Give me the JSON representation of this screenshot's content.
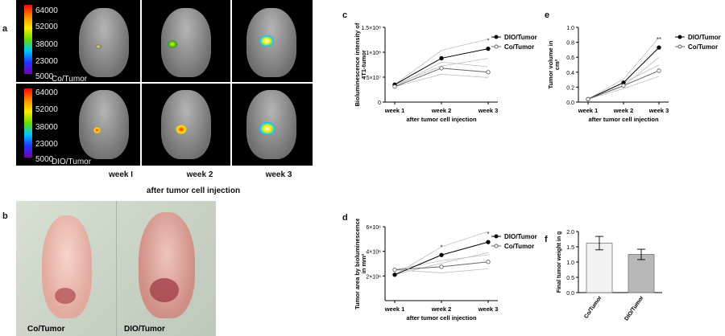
{
  "panel_letters": {
    "a": "a",
    "b": "b",
    "c": "c",
    "d": "d",
    "e": "e",
    "f": "f"
  },
  "panel_a": {
    "scale_ticks": [
      "64000",
      "52000",
      "38000",
      "23000",
      "5000"
    ],
    "row_labels": [
      "Co/Tumor",
      "DIO/Tumor"
    ],
    "week_labels": [
      "week I",
      "week 2",
      "week 3"
    ],
    "xlabel": "after tumor cell injection"
  },
  "panel_b": {
    "labels": [
      "Co/Tumor",
      "DIO/Tumor"
    ]
  },
  "colors": {
    "dio": "#000000",
    "co": "#666666",
    "spread": "#bdbdbd",
    "bar_co": "#f2f2f2",
    "bar_dio": "#b8b8b8"
  },
  "chart_data": [
    {
      "id": "c",
      "type": "line",
      "categories": [
        "week 1",
        "week 2",
        "week 3"
      ],
      "series": [
        {
          "name": "DIO/Tumor",
          "values": [
            35000000,
            88000000,
            107000000
          ]
        },
        {
          "name": "Co/Tumor",
          "values": [
            31000000,
            68000000,
            60000000
          ]
        }
      ],
      "ylabel": "Bioluminescence intensity of 4T1-tumor",
      "xlabel": "after tumor cell injection",
      "ylim": [
        0,
        150000000
      ],
      "yticks": [
        "0",
        "5×10⁷",
        "1×10⁸",
        "1.5×10⁸"
      ],
      "annotations": [
        {
          "at": "week 3",
          "text": "*"
        }
      ],
      "legend": "right"
    },
    {
      "id": "d",
      "type": "line",
      "categories": [
        "week 1",
        "week 2",
        "week 3"
      ],
      "series": [
        {
          "name": "DIO/Tumor",
          "values": [
            2100000,
            3700000,
            4750000
          ]
        },
        {
          "name": "Co/Tumor",
          "values": [
            2500000,
            2750000,
            3150000
          ]
        }
      ],
      "ylabel": "Tumor area by bioluminescence in mm²",
      "xlabel": "after tumor cell injection",
      "ylim": [
        0,
        6000000
      ],
      "yticks": [
        "2×10⁶",
        "4×10⁶",
        "6×10⁶"
      ],
      "annotations": [
        {
          "at": "week 2",
          "text": "*"
        },
        {
          "at": "week 3",
          "text": "*"
        }
      ],
      "legend": "right"
    },
    {
      "id": "e",
      "type": "line",
      "categories": [
        "week 1",
        "week 2",
        "week 3"
      ],
      "series": [
        {
          "name": "DIO/Tumor",
          "values": [
            0.04,
            0.26,
            0.73
          ]
        },
        {
          "name": "Co/Tumor",
          "values": [
            0.04,
            0.22,
            0.42
          ]
        }
      ],
      "ylabel": "Tumor volume in cm³",
      "xlabel": "after tumor cell injection",
      "ylim": [
        0,
        1.0
      ],
      "yticks": [
        "0.0",
        "0.2",
        "0.4",
        "0.6",
        "0.8",
        "1.0"
      ],
      "annotations": [
        {
          "at": "week 3",
          "text": "**"
        }
      ],
      "legend": "right"
    },
    {
      "id": "f",
      "type": "bar",
      "categories": [
        "Co/Tumor",
        "DIO/Tumor"
      ],
      "values": [
        1.62,
        1.25
      ],
      "errors": [
        0.22,
        0.17
      ],
      "ylabel": "Final tumor weight in g",
      "ylim": [
        0,
        2.0
      ],
      "yticks": [
        "0.0",
        "0.5",
        "1.0",
        "1.5",
        "2.0"
      ]
    }
  ]
}
